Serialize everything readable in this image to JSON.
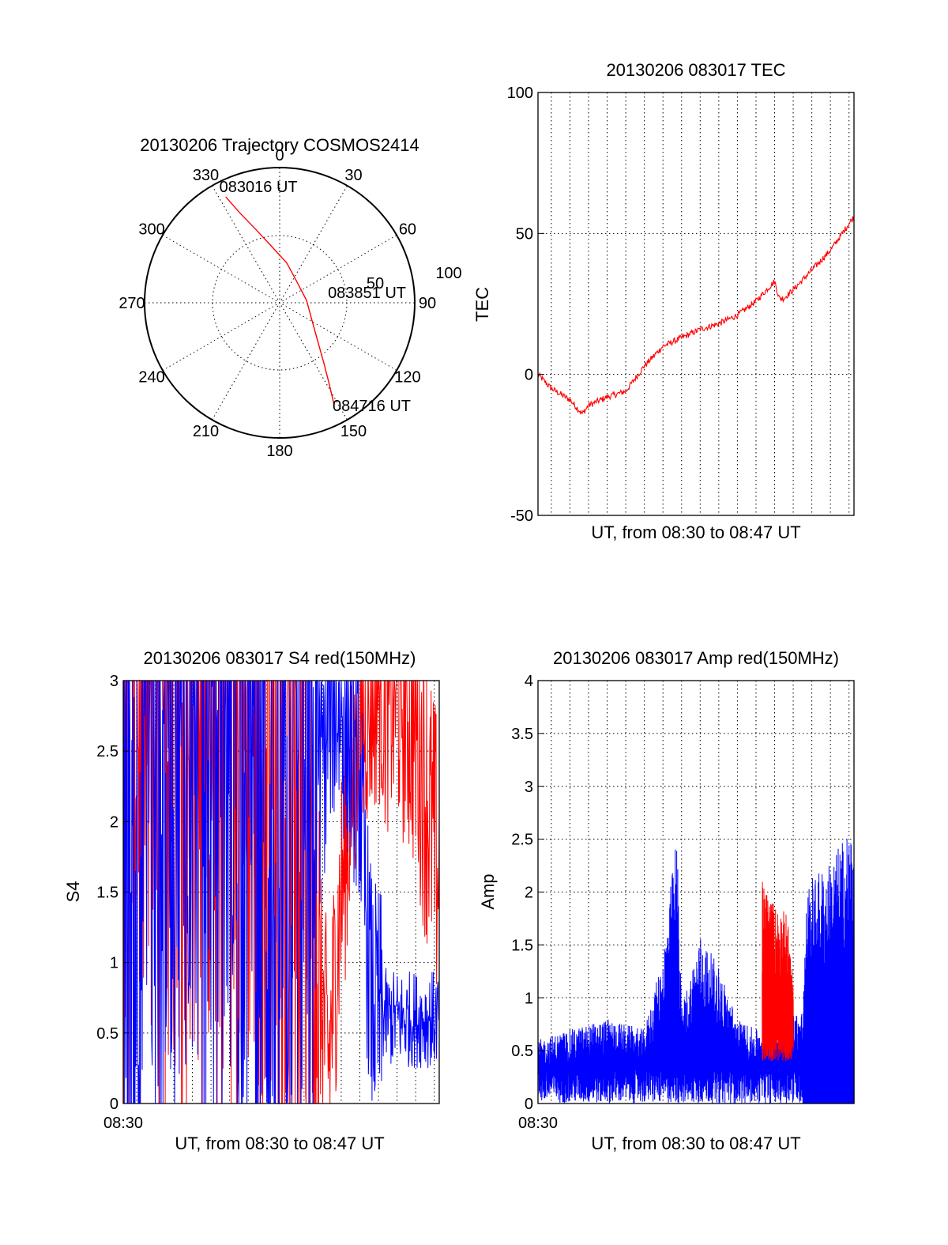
{
  "chart_data": [
    {
      "type": "scatter",
      "subtype": "polar",
      "title": "20130206 Trajectory COSMOS2414",
      "angle_labels": [
        "0",
        "30",
        "60",
        "90",
        "120",
        "150",
        "180",
        "210",
        "240",
        "270",
        "300",
        "330"
      ],
      "radius_labels": [
        "50",
        "100"
      ],
      "rlim": [
        0,
        100
      ],
      "direction": "clockwise, 0 at top",
      "grid": true,
      "colors": {
        "track": "#ff0000"
      },
      "series": [
        {
          "points_az_r": [
            [
              333,
              88
            ],
            [
              336,
              73
            ],
            [
              342,
              57
            ],
            [
              352,
              42
            ],
            [
              10,
              30
            ],
            [
              40,
              20
            ],
            [
              85,
              20
            ],
            [
              118,
              27
            ],
            [
              136,
              41
            ],
            [
              144,
              56
            ],
            [
              149,
              72
            ],
            [
              152,
              86
            ]
          ]
        }
      ],
      "annotations": [
        {
          "text": "083016 UT",
          "az": 333,
          "r": 88
        },
        {
          "text": "083851 UT",
          "az": 85,
          "r": 20
        },
        {
          "text": "084716 UT",
          "az": 152,
          "r": 86
        }
      ]
    },
    {
      "type": "line",
      "title": "20130206 083017 TEC",
      "xlabel": "UT, from 08:30 to 08:47 UT",
      "ylabel": "TEC",
      "xlim": [
        "08:30:17",
        "08:47:16"
      ],
      "ylim": [
        -50,
        100
      ],
      "yticks": [
        "-50",
        "0",
        "50",
        "100"
      ],
      "grid": true,
      "colors": {
        "line": "#ff0000"
      },
      "series": [
        {
          "x": [
            "08:30:17",
            "08:31:00",
            "08:32:00",
            "08:32:40",
            "08:33:00",
            "08:34:00",
            "08:35:00",
            "08:36:00",
            "08:37:00",
            "08:38:00",
            "08:39:00",
            "08:40:00",
            "08:41:00",
            "08:42:00",
            "08:43:00",
            "08:43:15",
            "08:43:30",
            "08:44:00",
            "08:45:00",
            "08:46:00",
            "08:47:16"
          ],
          "values": [
            0,
            -5,
            -9,
            -14,
            -11,
            -8,
            -6,
            3,
            10,
            13,
            16,
            18,
            21,
            26,
            33,
            27,
            27,
            30,
            37,
            44,
            56
          ]
        }
      ]
    },
    {
      "type": "line",
      "title": "20130206 083017 S4 red(150MHz)",
      "xlabel": "UT, from 08:30 to 08:47 UT",
      "ylabel": "S4",
      "xlim": [
        "08:30:17",
        "08:47:16"
      ],
      "ylim": [
        0,
        3
      ],
      "yticks": [
        "0",
        "0.5",
        "1",
        "1.5",
        "2",
        "2.5",
        "3"
      ],
      "xticks": [
        "08:30"
      ],
      "grid": true,
      "colors": {
        "red": "#ff0000",
        "blue": "#0000ff"
      },
      "series": [
        {
          "color": "red",
          "x": [
            "08:30:17",
            "08:33:00",
            "08:36:00",
            "08:38:00",
            "08:39:00",
            "08:40:00",
            "08:40:40",
            "08:41:20",
            "08:42:00",
            "08:42:40",
            "08:43:20",
            "08:44:00",
            "08:45:00",
            "08:46:00",
            "08:47:16"
          ],
          "values": [
            3,
            3,
            3,
            2.7,
            2.2,
            1.6,
            1.0,
            0.3,
            1.5,
            2.3,
            2.8,
            3,
            3,
            2.7,
            1.6
          ]
        },
        {
          "color": "blue",
          "x": [
            "08:30:17",
            "08:33:00",
            "08:36:00",
            "08:37:30",
            "08:38:30",
            "08:39:30",
            "08:40:30",
            "08:41:30",
            "08:42:00",
            "08:43:00",
            "08:43:20",
            "08:43:40",
            "08:44:30",
            "08:45:30",
            "08:47:16"
          ],
          "values": [
            1.3,
            3,
            3,
            2.2,
            1.2,
            2.6,
            1.9,
            2.9,
            2.8,
            2.3,
            1.3,
            0.7,
            0.6,
            0.6,
            0.6
          ]
        }
      ]
    },
    {
      "type": "line",
      "title": "20130206 083017 Amp red(150MHz)",
      "xlabel": "UT, from 08:30 to 08:47 UT",
      "ylabel": "Amp",
      "xlim": [
        "08:30:17",
        "08:47:16"
      ],
      "ylim": [
        0,
        4
      ],
      "yticks": [
        "0",
        "0.5",
        "1",
        "1.5",
        "2",
        "2.5",
        "3",
        "3.5",
        "4"
      ],
      "xticks": [
        "08:30"
      ],
      "grid": true,
      "colors": {
        "red": "#ff0000",
        "blue": "#0000ff"
      },
      "series": [
        {
          "color": "blue",
          "x": [
            "08:30:17",
            "08:32:00",
            "08:34:00",
            "08:36:00",
            "08:37:00",
            "08:37:45",
            "08:38:00",
            "08:39:00",
            "08:40:00",
            "08:41:00",
            "08:42:00",
            "08:44:30",
            "08:44:45",
            "08:46:00",
            "08:47:16"
          ],
          "values": [
            0.6,
            0.7,
            0.8,
            0.7,
            1.4,
            2.6,
            0.9,
            1.6,
            1.3,
            0.8,
            0.7,
            0.9,
            2.1,
            2.3,
            2.7
          ]
        },
        {
          "color": "red",
          "x": [
            "08:42:20",
            "08:42:40",
            "08:43:00",
            "08:43:20",
            "08:43:40",
            "08:44:00"
          ],
          "values": [
            2.1,
            2.0,
            1.9,
            1.85,
            1.8,
            1.2
          ]
        }
      ]
    }
  ]
}
